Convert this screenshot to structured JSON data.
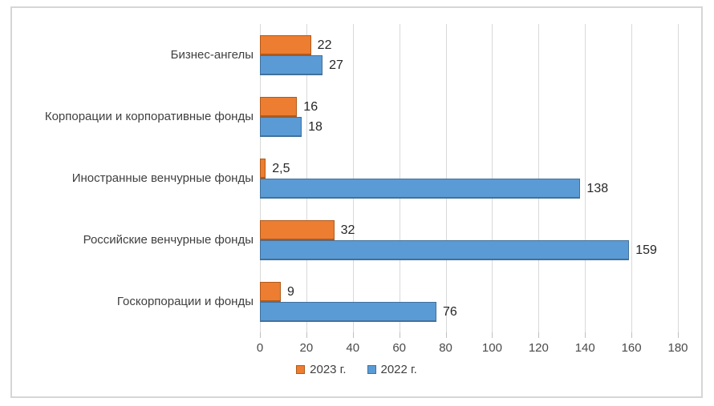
{
  "chart_data": {
    "type": "bar",
    "orientation": "horizontal",
    "title": "",
    "categories": [
      "Бизнес-ангелы",
      "Корпорации и корпоративные фонды",
      "Иностранные венчурные фонды",
      "Российские венчурные фонды",
      "Госкорпорации и фонды"
    ],
    "series": [
      {
        "name": "2023 г.",
        "color": "#ED7D31",
        "border_color": "#B05A1C",
        "values": [
          22,
          16,
          2.5,
          32,
          9
        ],
        "labels": [
          "22",
          "16",
          "2,5",
          "32",
          "9"
        ]
      },
      {
        "name": "2022 г.",
        "color": "#5B9BD5",
        "border_color": "#41719C",
        "values": [
          27,
          18,
          138,
          159,
          76
        ],
        "labels": [
          "27",
          "18",
          "138",
          "159",
          "76"
        ]
      }
    ],
    "xlim": [
      0,
      180
    ],
    "x_ticks": [
      0,
      20,
      40,
      60,
      80,
      100,
      120,
      140,
      160,
      180
    ],
    "x_tick_labels": [
      "0",
      "20",
      "40",
      "60",
      "80",
      "100",
      "120",
      "140",
      "160",
      "180"
    ],
    "grid": true,
    "legend_position": "bottom"
  },
  "colors": {
    "gridline": "#d9d9d9",
    "tick_mark": "#bfbfbf",
    "frame_border": "#d6d6d6",
    "category_text": "#3f3f3f",
    "value_text": "#262626",
    "axis_text": "#4a4a4a",
    "legend_text": "#404040"
  }
}
